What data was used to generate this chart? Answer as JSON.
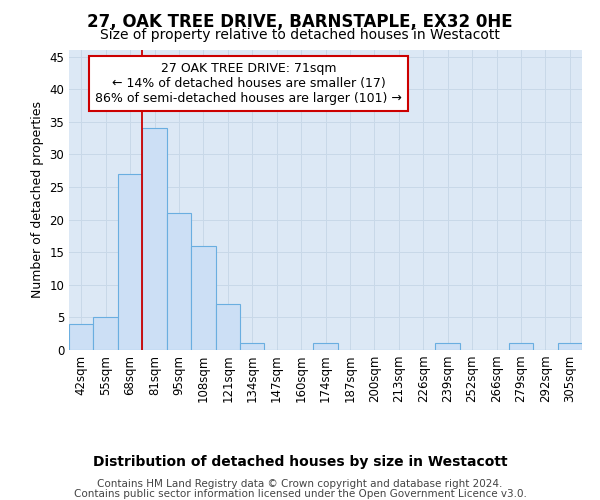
{
  "title": "27, OAK TREE DRIVE, BARNSTAPLE, EX32 0HE",
  "subtitle": "Size of property relative to detached houses in Westacott",
  "xlabel": "Distribution of detached houses by size in Westacott",
  "ylabel": "Number of detached properties",
  "categories": [
    "42sqm",
    "55sqm",
    "68sqm",
    "81sqm",
    "95sqm",
    "108sqm",
    "121sqm",
    "134sqm",
    "147sqm",
    "160sqm",
    "174sqm",
    "187sqm",
    "200sqm",
    "213sqm",
    "226sqm",
    "239sqm",
    "252sqm",
    "266sqm",
    "279sqm",
    "292sqm",
    "305sqm"
  ],
  "values": [
    4,
    5,
    27,
    34,
    21,
    16,
    7,
    1,
    0,
    0,
    1,
    0,
    0,
    0,
    0,
    1,
    0,
    0,
    1,
    0,
    1
  ],
  "bar_color": "#ccdff5",
  "bar_edge_color": "#6aaee0",
  "grid_color": "#c8d8e8",
  "background_color": "#dce8f5",
  "vline_x_idx": 2,
  "vline_color": "#cc0000",
  "annotation_text": "27 OAK TREE DRIVE: 71sqm\n← 14% of detached houses are smaller (17)\n86% of semi-detached houses are larger (101) →",
  "annotation_box_facecolor": "#ffffff",
  "annotation_box_edgecolor": "#cc0000",
  "footer_line1": "Contains HM Land Registry data © Crown copyright and database right 2024.",
  "footer_line2": "Contains public sector information licensed under the Open Government Licence v3.0.",
  "ylim": [
    0,
    46
  ],
  "yticks": [
    0,
    5,
    10,
    15,
    20,
    25,
    30,
    35,
    40,
    45
  ],
  "title_fontsize": 12,
  "subtitle_fontsize": 10,
  "xlabel_fontsize": 10,
  "ylabel_fontsize": 9,
  "tick_fontsize": 8.5,
  "annotation_fontsize": 9,
  "footer_fontsize": 7.5
}
